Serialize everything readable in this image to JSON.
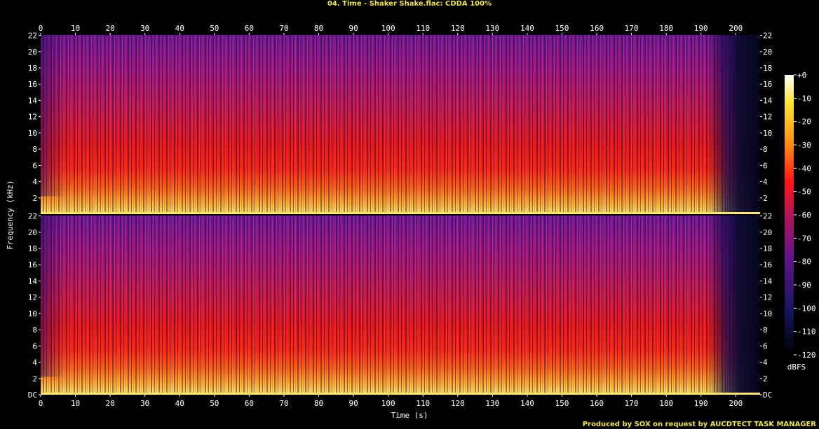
{
  "title": "04. Time - Shaker Shake.flac: CDDA 100%",
  "footer": "Produced by SOX on request by AUCDTECT TASK MANAGER",
  "chart_data": {
    "type": "heatmap",
    "subtype": "spectrogram",
    "channels": 2,
    "xlabel": "Time (s)",
    "ylabel": "Frequency (kHz)",
    "xlim": [
      0,
      207
    ],
    "ylim": [
      0,
      22.05
    ],
    "x_ticks": [
      "0",
      "10",
      "20",
      "30",
      "40",
      "50",
      "60",
      "70",
      "80",
      "90",
      "100",
      "110",
      "120",
      "130",
      "140",
      "150",
      "160",
      "170",
      "180",
      "190",
      "200"
    ],
    "y_ticks": [
      "DC",
      "2",
      "4",
      "6",
      "8",
      "10",
      "12",
      "14",
      "16",
      "18",
      "20",
      "22"
    ],
    "colorbar": {
      "label": "dBFS",
      "ticks": [
        "+0",
        "-10",
        "-20",
        "-30",
        "-40",
        "-50",
        "-60",
        "-70",
        "-80",
        "-90",
        "-100",
        "-110",
        "-120"
      ],
      "range": [
        -120,
        0
      ]
    },
    "colors": {
      "low": "#000000",
      "blue": "#14145a",
      "purple": "#64148c",
      "magenta": "#b4145a",
      "red": "#ff1414",
      "orange": "#ff8c14",
      "yellow": "#ffe632",
      "white": "#ffffff"
    }
  }
}
